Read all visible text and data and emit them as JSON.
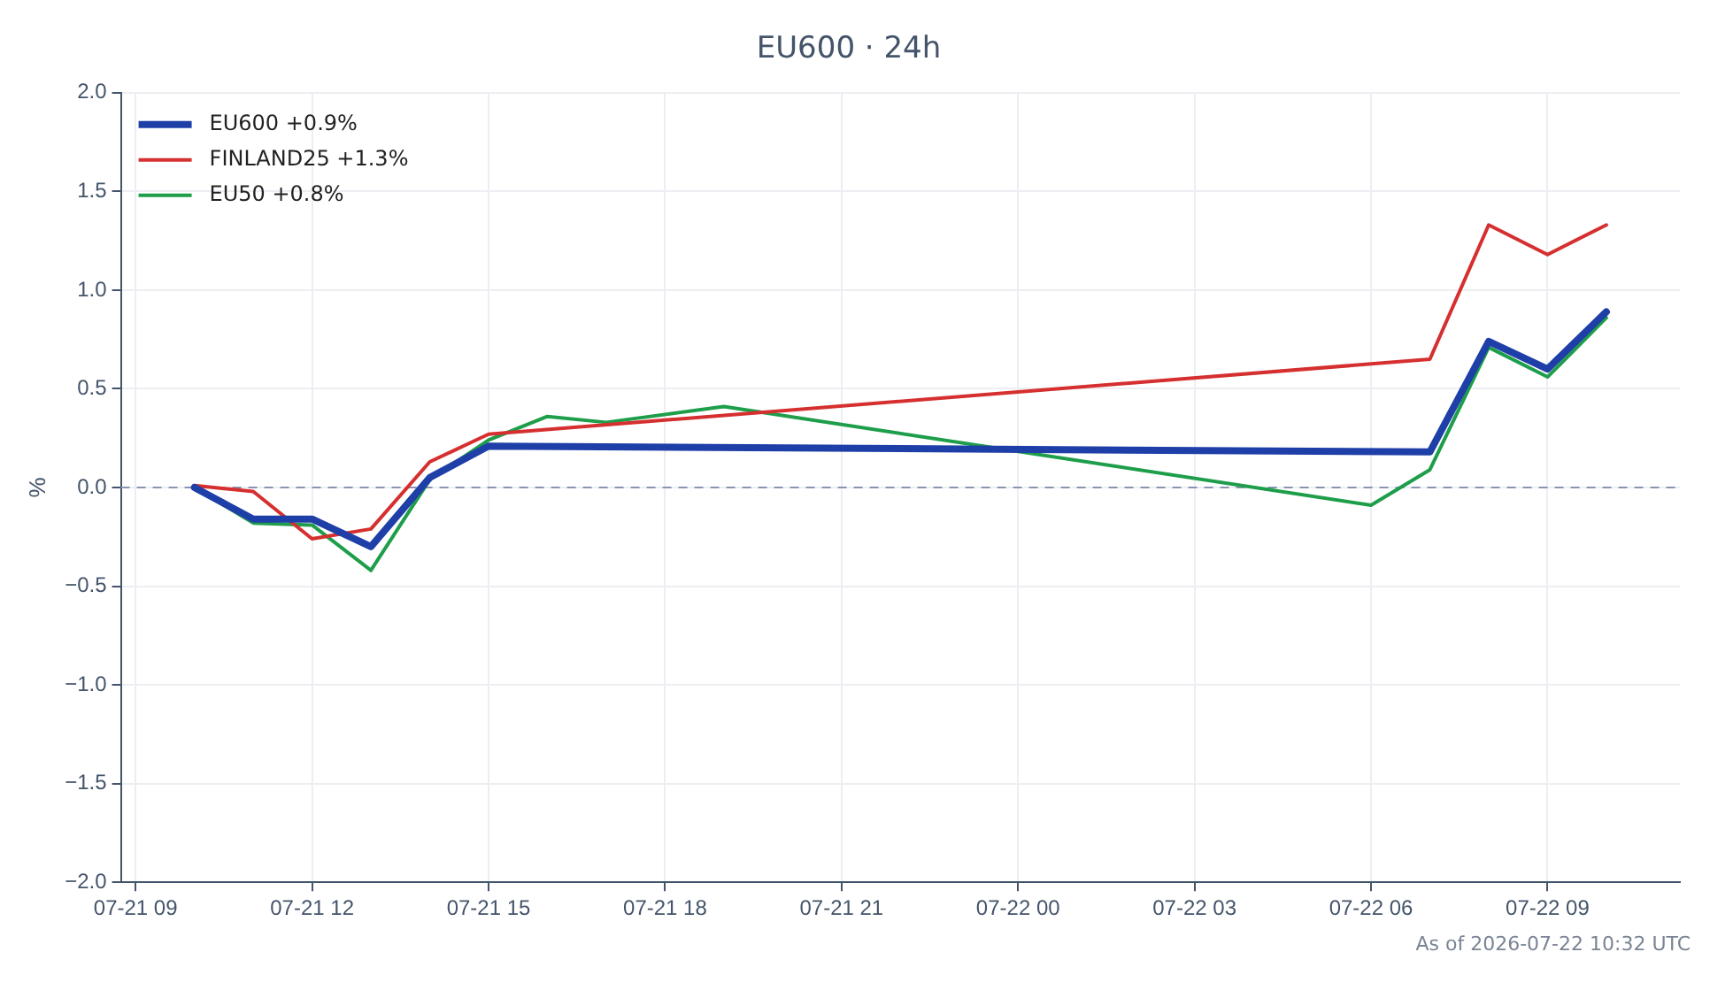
{
  "chart_data": {
    "type": "line",
    "title": "EU600 · 24h",
    "ylabel": "%",
    "annotations": [
      "As of 2026-07-22 10:32 UTC"
    ],
    "xlim": [
      "2026-07-21T08:45",
      "2026-07-22T11:15"
    ],
    "xticks": [
      {
        "value": "2026-07-21T09:00",
        "label": "07-21 09"
      },
      {
        "value": "2026-07-21T12:00",
        "label": "07-21 12"
      },
      {
        "value": "2026-07-21T15:00",
        "label": "07-21 15"
      },
      {
        "value": "2026-07-21T18:00",
        "label": "07-21 18"
      },
      {
        "value": "2026-07-21T21:00",
        "label": "07-21 21"
      },
      {
        "value": "2026-07-22T00:00",
        "label": "07-22 00"
      },
      {
        "value": "2026-07-22T03:00",
        "label": "07-22 03"
      },
      {
        "value": "2026-07-22T06:00",
        "label": "07-22 06"
      },
      {
        "value": "2026-07-22T09:00",
        "label": "07-22 09"
      }
    ],
    "ylim": [
      -2,
      2
    ],
    "yticks": [
      {
        "value": -2,
        "label": "−2.0"
      },
      {
        "value": -1.5,
        "label": "−1.5"
      },
      {
        "value": -1,
        "label": "−1.0"
      },
      {
        "value": -0.5,
        "label": "−0.5"
      },
      {
        "value": 0,
        "label": "0.0"
      },
      {
        "value": 0.5,
        "label": "0.5"
      },
      {
        "value": 1,
        "label": "1.0"
      },
      {
        "value": 1.5,
        "label": "1.5"
      },
      {
        "value": 2,
        "label": "2.0"
      }
    ],
    "grid": true,
    "legend": "top left",
    "marker": "none",
    "line_style": "solid",
    "ref_lines": [
      {
        "axis": "y",
        "value": 0,
        "color": "#8a94b0",
        "line_style": "dashed"
      }
    ],
    "series": [
      {
        "name": "EU600 +0.9%",
        "color": "#1f3fa8",
        "x": [
          "2026-07-21T10:00",
          "2026-07-21T11:00",
          "2026-07-21T12:00",
          "2026-07-21T13:00",
          "2026-07-21T14:00",
          "2026-07-21T15:00",
          "2026-07-22T07:00",
          "2026-07-22T08:00",
          "2026-07-22T09:00",
          "2026-07-22T10:00"
        ],
        "values": [
          0.0,
          -0.16,
          -0.16,
          -0.3,
          0.05,
          0.21,
          0.18,
          0.74,
          0.6,
          0.89
        ]
      },
      {
        "name": "FINLAND25 +1.3%",
        "color": "#d62f2f",
        "x": [
          "2026-07-21T10:00",
          "2026-07-21T11:00",
          "2026-07-21T12:00",
          "2026-07-21T13:00",
          "2026-07-21T14:00",
          "2026-07-21T15:00",
          "2026-07-22T07:00",
          "2026-07-22T08:00",
          "2026-07-22T09:00",
          "2026-07-22T10:00"
        ],
        "values": [
          0.01,
          -0.02,
          -0.26,
          -0.21,
          0.13,
          0.27,
          0.65,
          1.33,
          1.18,
          1.33
        ]
      },
      {
        "name": "EU50 +0.8%",
        "color": "#1e9e4a",
        "x": [
          "2026-07-21T10:00",
          "2026-07-21T11:00",
          "2026-07-21T12:00",
          "2026-07-21T13:00",
          "2026-07-21T14:00",
          "2026-07-21T15:00",
          "2026-07-21T16:00",
          "2026-07-21T17:00",
          "2026-07-21T19:00",
          "2026-07-22T06:00",
          "2026-07-22T07:00",
          "2026-07-22T08:00",
          "2026-07-22T09:00",
          "2026-07-22T10:00"
        ],
        "values": [
          0.0,
          -0.18,
          -0.19,
          -0.42,
          0.04,
          0.24,
          0.36,
          0.33,
          0.41,
          -0.09,
          0.09,
          0.71,
          0.56,
          0.86
        ]
      }
    ]
  }
}
